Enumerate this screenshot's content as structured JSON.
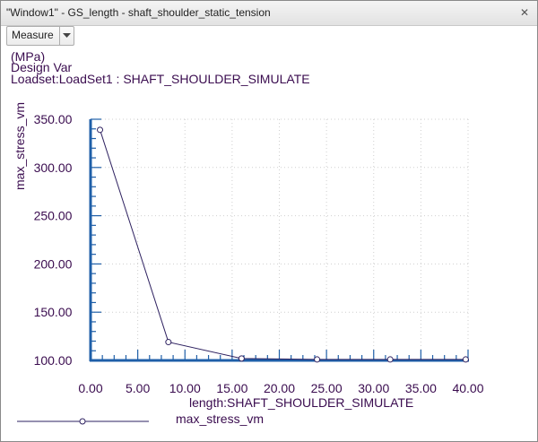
{
  "window": {
    "title": "\"Window1\" - GS_length - shaft_shoulder_static_tension",
    "close_glyph": "✕"
  },
  "toolbar": {
    "measure_label": "Measure",
    "dropdown_icon": "chevron-down-icon"
  },
  "info": {
    "units": "(MPa)",
    "design_var": "Design Var",
    "loadset": "Loadset:LoadSet1 :  SHAFT_SHOULDER_SIMULATE"
  },
  "colors": {
    "axis": "#1f5fa8",
    "grid": "#cfcfcf",
    "series": "#2e2160",
    "text": "#3a0c4f"
  },
  "chart_data": {
    "type": "line",
    "xlabel": "length:SHAFT_SHOULDER_SIMULATE",
    "ylabel": "max_stress_vm",
    "xlim": [
      0,
      40
    ],
    "ylim": [
      100,
      350
    ],
    "x_ticks": [
      "0.00",
      "5.00",
      "10.00",
      "15.00",
      "20.00",
      "25.00",
      "30.00",
      "35.00",
      "40.00"
    ],
    "y_ticks": [
      "100.00",
      "150.00",
      "200.00",
      "250.00",
      "300.00",
      "350.00"
    ],
    "grid": true,
    "legend_position": "bottom-left",
    "series": [
      {
        "name": "max_stress_vm",
        "x": [
          1,
          8.25,
          16,
          24,
          31.75,
          39.75
        ],
        "y": [
          339,
          119,
          102,
          101,
          101,
          101
        ]
      }
    ]
  }
}
